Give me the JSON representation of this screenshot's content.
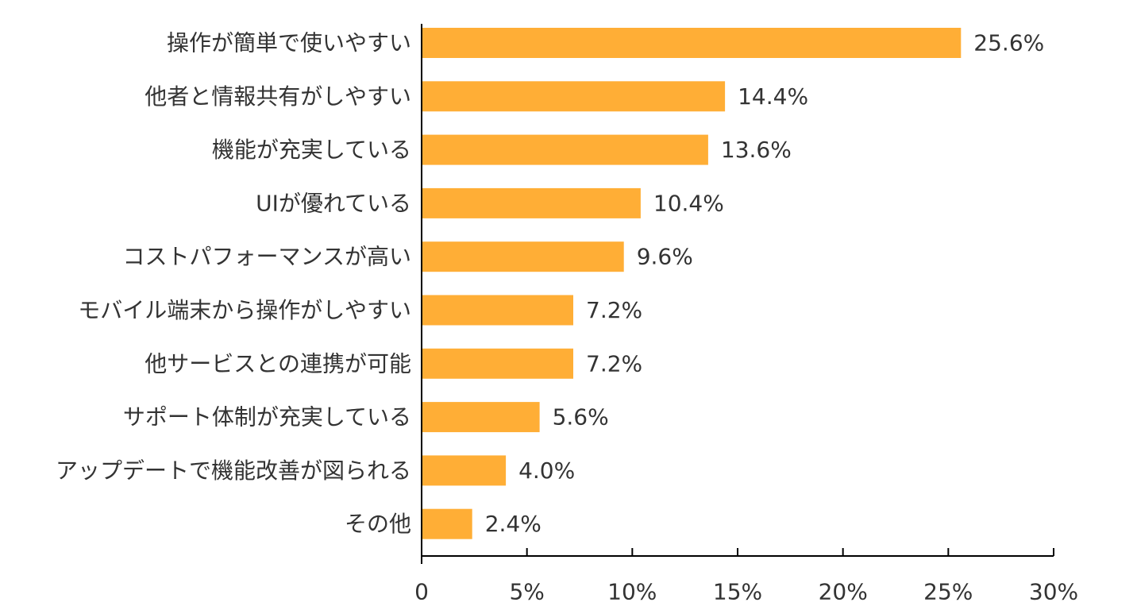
{
  "chart_data": {
    "type": "bar",
    "orientation": "horizontal",
    "categories": [
      "操作が簡単で使いやすい",
      "他者と情報共有がしやすい",
      "機能が充実している",
      "UIが優れている",
      "コストパフォーマンスが高い",
      "モバイル端末から操作がしやすい",
      "他サービスとの連携が可能",
      "サポート体制が充実している",
      "アップデートで機能改善が図られる",
      "その他"
    ],
    "values": [
      25.6,
      14.4,
      13.6,
      10.4,
      9.6,
      7.2,
      7.2,
      5.6,
      4.0,
      2.4
    ],
    "value_labels": [
      "25.6%",
      "14.4%",
      "13.6%",
      "10.4%",
      "9.6%",
      "7.2%",
      "7.2%",
      "5.6%",
      "4.0%",
      "2.4%"
    ],
    "xlim": [
      0,
      30
    ],
    "xticks": [
      0,
      5,
      10,
      15,
      20,
      25,
      30
    ],
    "xtick_labels": [
      "0",
      "5%",
      "10%",
      "15%",
      "20%",
      "25%",
      "30%"
    ],
    "bar_color": "#FFAE36",
    "grid": false,
    "legend": "none"
  }
}
